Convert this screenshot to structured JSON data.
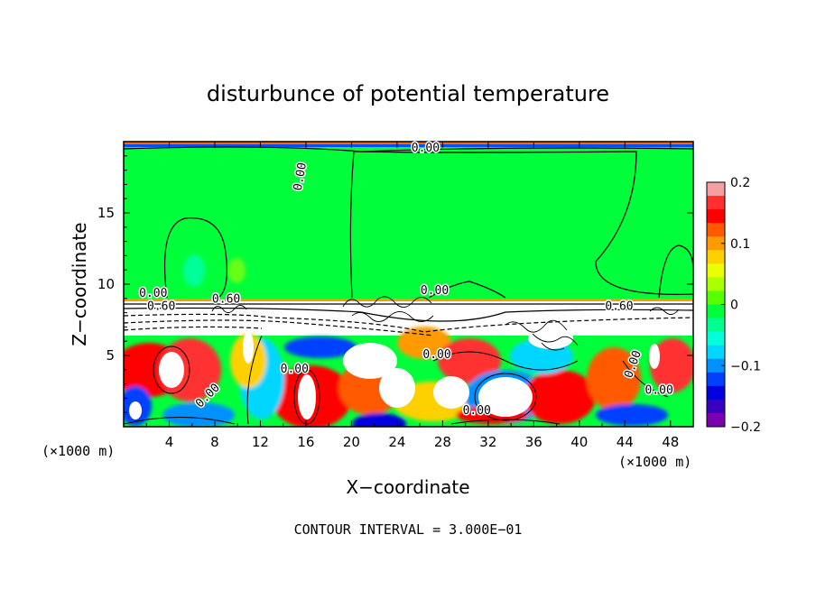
{
  "chart_data": {
    "type": "heatmap",
    "title": "disturbunce of potential temperature",
    "xlabel": "X−coordinate",
    "ylabel": "Z−coordinate",
    "x_unit": "(×1000 m)",
    "z_unit": "(×1000 m)",
    "xlim": [
      0,
      50
    ],
    "ylim": [
      0,
      20
    ],
    "x_ticks": [
      4,
      8,
      12,
      16,
      20,
      24,
      28,
      32,
      36,
      40,
      44,
      48
    ],
    "y_ticks": [
      5,
      10,
      15
    ],
    "colorbar": {
      "range": [
        -0.2,
        0.2
      ],
      "tick_values": [
        0.2,
        0.1,
        0,
        -0.1,
        -0.2
      ],
      "tick_labels": [
        "0.2",
        "0.1",
        "0",
        "−0.1",
        "−0.2"
      ],
      "colors": [
        "#f5a0a0",
        "#ff3030",
        "#ff0000",
        "#ff5a00",
        "#ff9a00",
        "#ffd000",
        "#eaff00",
        "#aaff00",
        "#55ff00",
        "#00ff3a",
        "#00ff90",
        "#00ffd8",
        "#00d6ff",
        "#0090ff",
        "#0040ff",
        "#0000e0",
        "#3a00c0",
        "#7a00b0"
      ]
    },
    "contour_interval_text": "CONTOUR INTERVAL = 3.000E−01",
    "contour_labels": [
      {
        "text": "0.00",
        "x": 26.5,
        "z": 19.3
      },
      {
        "text": "0.00",
        "x": 15.8,
        "z": 17.5,
        "rotate": -80
      },
      {
        "text": "0.00",
        "x": 2.6,
        "z": 9.1
      },
      {
        "text": "0.60",
        "x": 3.3,
        "z": 8.2
      },
      {
        "text": "0.60",
        "x": 9.0,
        "z": 8.7
      },
      {
        "text": "0.00",
        "x": 27.3,
        "z": 9.3
      },
      {
        "text": "0.60",
        "x": 43.5,
        "z": 8.2
      },
      {
        "text": "0.00",
        "x": 27.5,
        "z": 4.8
      },
      {
        "text": "0.00",
        "x": 15.0,
        "z": 3.8
      },
      {
        "text": "0.00",
        "x": 7.6,
        "z": 2.0,
        "rotate": -45
      },
      {
        "text": "0.00",
        "x": 31.0,
        "z": 0.9
      },
      {
        "text": "0.00",
        "x": 47.0,
        "z": 2.3
      },
      {
        "text": "0.00",
        "x": 45.0,
        "z": 4.3,
        "rotate": -70
      }
    ]
  }
}
